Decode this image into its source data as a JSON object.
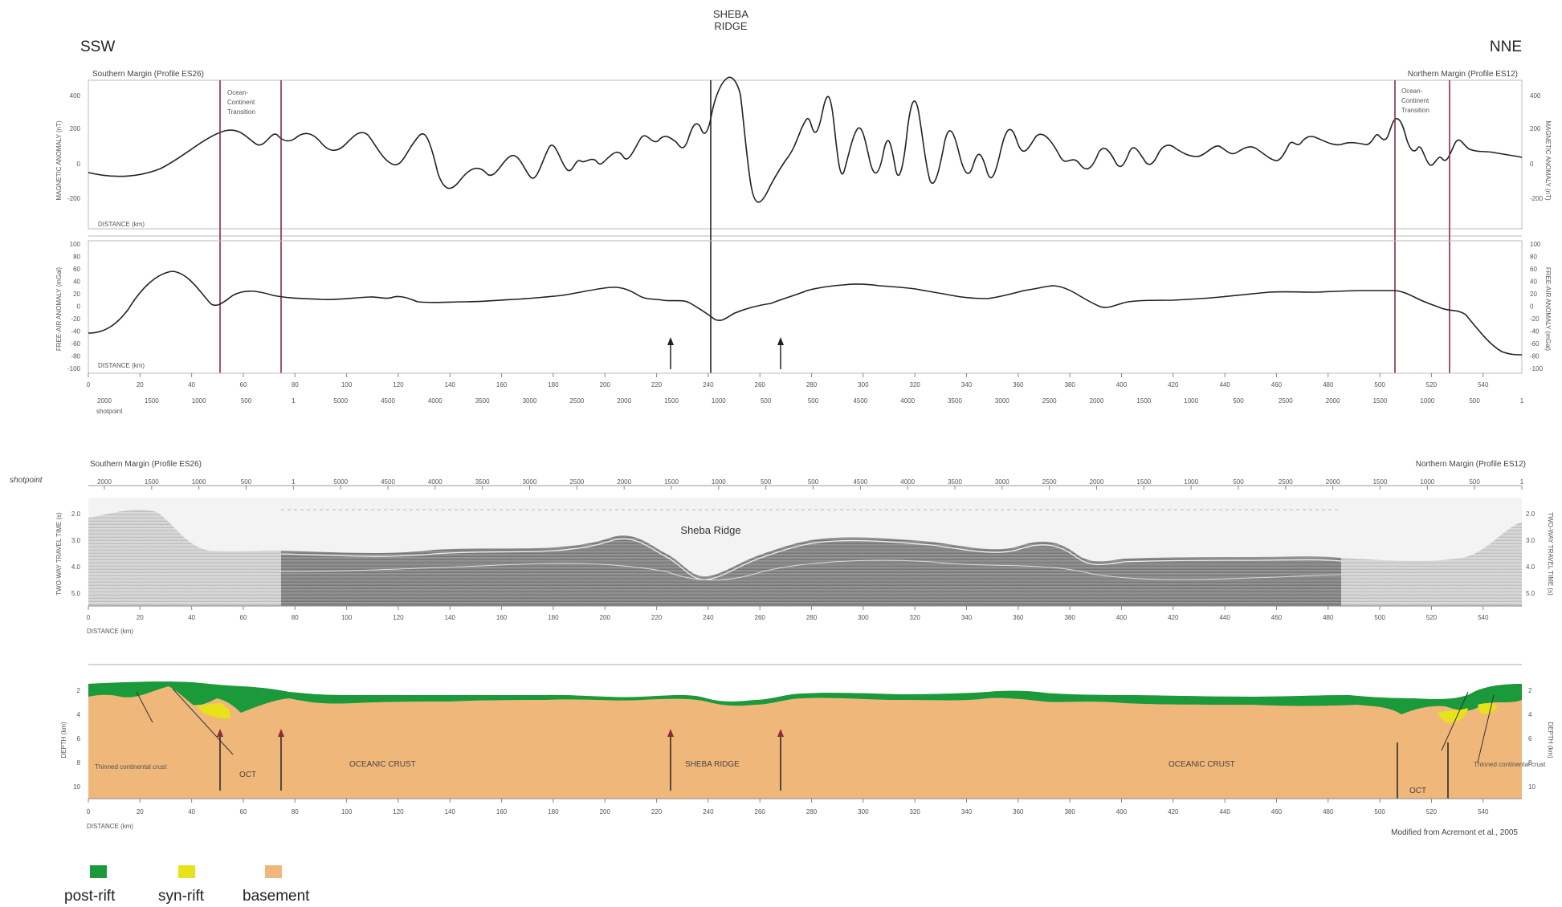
{
  "header": {
    "center_title_line1": "SHEBA",
    "center_title_line2": "RIDGE",
    "left_direction": "SSW",
    "right_direction": "NNE"
  },
  "magnetic_panel": {
    "left_title": "Southern Margin (Profile ES26)",
    "right_title": "Northern  Margin (Profile ES12)",
    "oct_left_label": [
      "Ocean-",
      "Continent",
      "Transition"
    ],
    "oct_right_label": [
      "Ocean-",
      "Continent",
      "Transition"
    ],
    "y_label_left": "MAGNETIC ANOMALY (nT)",
    "y_label_right": "MAGNETIC ANOMALY (nT)",
    "y_ticks": [
      "400",
      "200",
      "0",
      "-200"
    ],
    "distance_label": "DISTANCE (km)"
  },
  "gravity_panel": {
    "y_label_left": "FREE-AIR ANOMALY (mGal)",
    "y_label_right": "FREE-AIR ANOMALY (mGal)",
    "y_ticks": [
      "100",
      "80",
      "60",
      "40",
      "20",
      "0",
      "-20",
      "-40",
      "-60",
      "-80",
      "-100"
    ],
    "distance_label": "DISTANCE (km)",
    "x_ticks": [
      "0",
      "20",
      "40",
      "60",
      "80",
      "100",
      "120",
      "140",
      "160",
      "180",
      "200",
      "220",
      "240",
      "260",
      "280",
      "300",
      "320",
      "340",
      "360",
      "380",
      "400",
      "420",
      "440",
      "460",
      "480",
      "500",
      "520",
      "540"
    ],
    "shotpoint_ticks": [
      "2000",
      "1500",
      "1000",
      "500",
      "1",
      "5000",
      "4500",
      "4000",
      "3500",
      "3000",
      "2500",
      "2000",
      "1500",
      "1000",
      "500",
      "500",
      "4500",
      "4000",
      "3500",
      "3000",
      "2500",
      "2000",
      "1500",
      "1000",
      "500",
      "2500",
      "2000",
      "1500",
      "1000",
      "500",
      "1"
    ],
    "shotpoint_label": "shotpoint"
  },
  "seismic_panel": {
    "left_title": "Southern Margin (Profile ES26)",
    "right_title": "Northern  Margin (Profile ES12)",
    "shotpoint_label": "shotpoint",
    "ridge_label": "Sheba Ridge",
    "y_label_left": "TWO-WAY TRAVEL TIME (s)",
    "y_label_right": "TWO-WAY TRAVEL TIME (s)",
    "y_ticks": [
      "2.0",
      "3.0",
      "4.0",
      "5.0"
    ],
    "distance_label": "DISTANCE (km)"
  },
  "section_panel": {
    "y_label_left": "DEPTH (km)",
    "y_label_right": "DEPTH (km)",
    "y_ticks": [
      "2",
      "4",
      "6",
      "8",
      "10"
    ],
    "labels": {
      "thinned_left": "Thinned continental crust",
      "oct_left": "OCT",
      "oceanic_left": "OCEANIC CRUST",
      "ridge": "SHEBA RIDGE",
      "oceanic_right": "OCEANIC CRUST",
      "oct_right": "OCT",
      "thinned_right": "Thinned continental crust"
    },
    "distance_label": "DISTANCE (km)",
    "credit": "Modified from Acremont et al., 2005"
  },
  "legend": {
    "items": [
      {
        "label": "post-rift",
        "color": "#1a9a3a"
      },
      {
        "label": "syn-rift",
        "color": "#e8e21a"
      },
      {
        "label": "basement",
        "color": "#f0b77a"
      }
    ]
  },
  "colors": {
    "post_rift": "#1a9a3a",
    "syn_rift": "#e8e21a",
    "basement": "#f0b77a",
    "oct_line": "#8a2c3c"
  }
}
